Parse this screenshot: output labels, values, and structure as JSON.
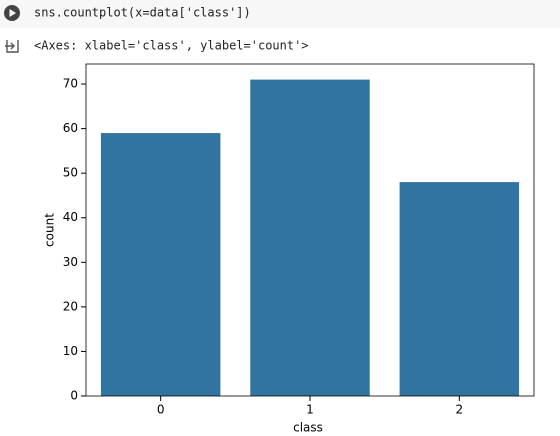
{
  "cell": {
    "code": "sns.countplot(x=data['class'])",
    "output": "<Axes: xlabel='class', ylabel='count'>"
  },
  "chart_data": {
    "type": "bar",
    "x_label": "class",
    "y_label": "count",
    "categories": [
      "0",
      "1",
      "2"
    ],
    "values": [
      59,
      71,
      48
    ],
    "color": "#3274a1",
    "ylim": [
      0,
      74.5
    ],
    "yticks": [
      0,
      10,
      20,
      30,
      40,
      50,
      60,
      70
    ],
    "grid": false
  }
}
